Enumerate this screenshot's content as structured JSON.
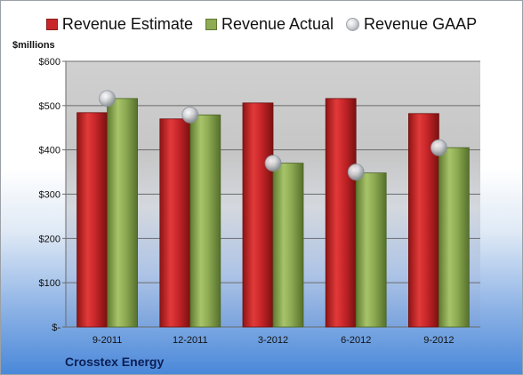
{
  "legend": {
    "estimate_label": "Revenue Estimate",
    "actual_label": "Revenue Actual",
    "gaap_label": "Revenue GAAP"
  },
  "units_label": "$millions",
  "company": "Crosstex Energy",
  "colors": {
    "estimate": "#c8262a",
    "actual": "#8eab53",
    "gaap": "#c9ccd1"
  },
  "chart_data": {
    "type": "bar",
    "categories": [
      "9-2011",
      "12-2011",
      "3-2012",
      "6-2012",
      "9-2012"
    ],
    "series": [
      {
        "name": "Revenue Estimate",
        "values": [
          484,
          470,
          506,
          516,
          482
        ]
      },
      {
        "name": "Revenue Actual",
        "values": [
          516,
          479,
          370,
          348,
          405
        ]
      },
      {
        "name": "Revenue GAAP",
        "values": [
          516,
          479,
          370,
          350,
          405
        ]
      }
    ],
    "yticks": [
      "$-",
      "$100",
      "$200",
      "$300",
      "$400",
      "$500",
      "$600"
    ],
    "ylabel": "$millions",
    "ylim": [
      0,
      600
    ],
    "grid": true,
    "legend_position": "top"
  }
}
